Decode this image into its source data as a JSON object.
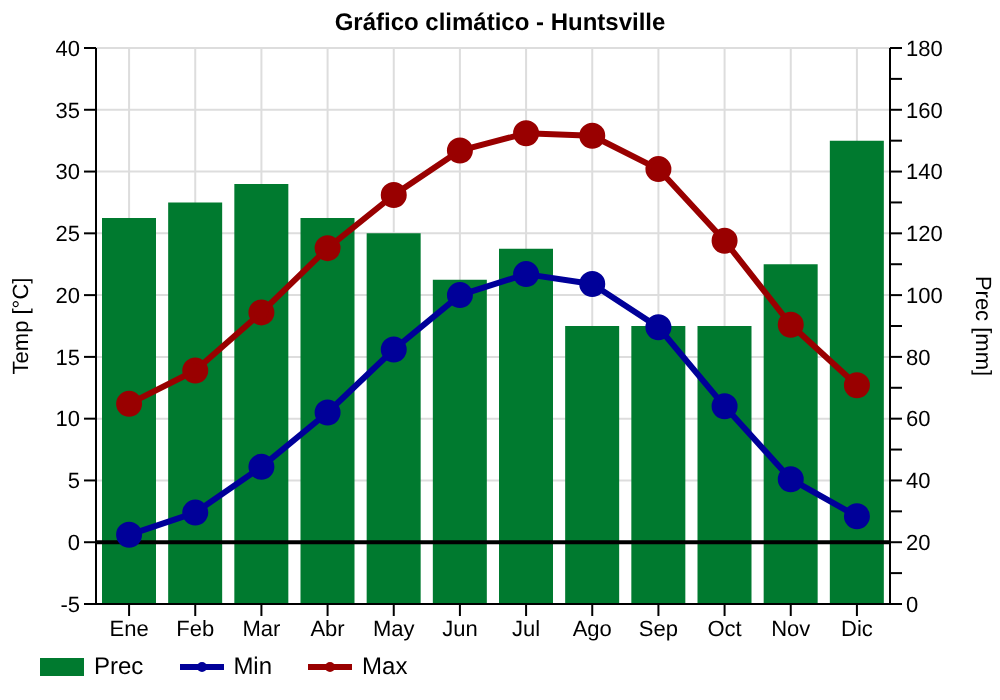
{
  "chart_data": {
    "type": "bar",
    "title": "Gráfico climático - Huntsville",
    "ylabel": "Temp [°C]",
    "y2label": "Prec [mm]",
    "categories": [
      "Ene",
      "Feb",
      "Mar",
      "Abr",
      "May",
      "Jun",
      "Jul",
      "Ago",
      "Sep",
      "Oct",
      "Nov",
      "Dic"
    ],
    "series": [
      {
        "name": "Prec",
        "axis": "y2",
        "color": "#007a2f",
        "values": [
          125,
          130,
          136,
          125,
          120,
          105,
          115,
          90,
          90,
          90,
          110,
          150
        ]
      },
      {
        "name": "Min",
        "type": "line",
        "color": "#000099",
        "values": [
          0.6,
          2.4,
          6.1,
          10.5,
          15.6,
          20.0,
          21.7,
          20.9,
          17.4,
          11.0,
          5.1,
          2.1
        ]
      },
      {
        "name": "Max",
        "type": "line",
        "color": "#990000",
        "values": [
          11.2,
          13.9,
          18.6,
          23.8,
          28.1,
          31.7,
          33.1,
          32.9,
          30.2,
          24.4,
          17.6,
          12.7
        ]
      }
    ],
    "ylim": [
      -5,
      40
    ],
    "yticks": [
      -5,
      0,
      5,
      10,
      15,
      20,
      25,
      30,
      35,
      40
    ],
    "y2lim": [
      0,
      180
    ],
    "y2ticks": [
      0,
      {
        "value": 10,
        "label": null
      },
      20,
      {
        "value": 30,
        "label": null
      },
      40,
      {
        "value": 50,
        "label": null
      },
      60,
      {
        "value": 70,
        "label": null
      },
      80,
      {
        "value": 90,
        "label": null
      },
      100,
      {
        "value": 110,
        "label": null
      },
      120,
      {
        "value": 130,
        "label": null
      },
      140,
      {
        "value": 150,
        "label": null
      },
      160,
      {
        "value": 170,
        "label": null
      },
      180
    ],
    "ref_lines": [
      {
        "axis": "y",
        "value": 0,
        "color": "#000000"
      }
    ],
    "grid": true,
    "legend": "bottom",
    "marker": "circle",
    "line_style": "solid"
  }
}
